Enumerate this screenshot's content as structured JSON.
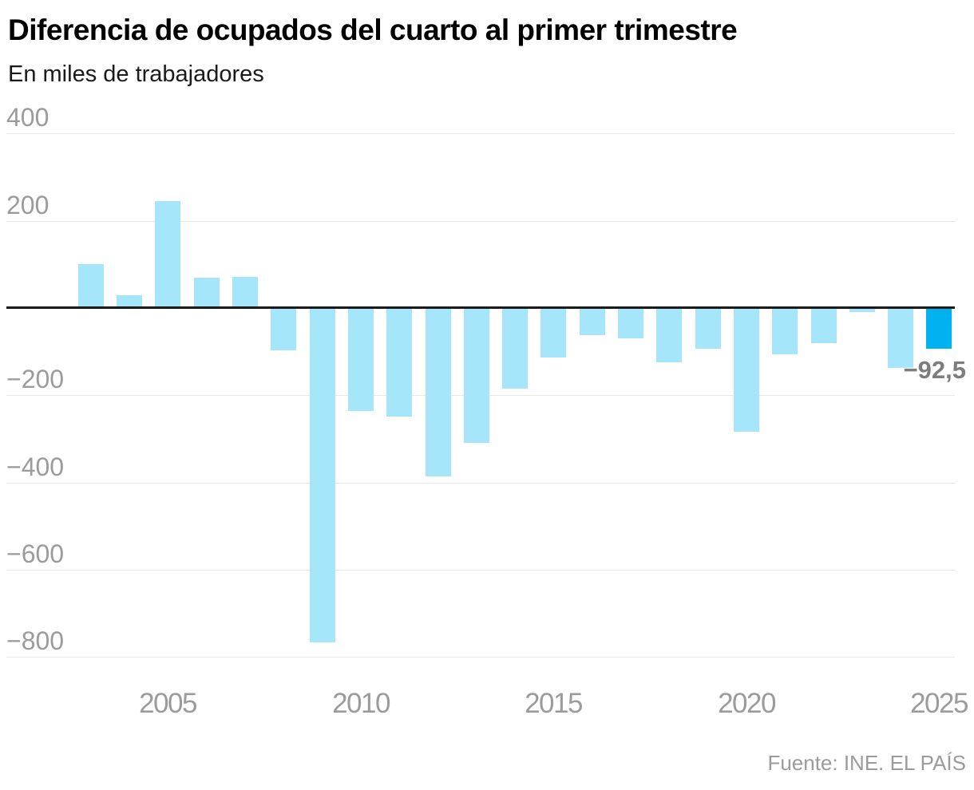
{
  "chart_data": {
    "type": "bar",
    "title": "Diferencia de ocupados del cuarto al primer trimestre",
    "subtitle": "En miles de trabajadores",
    "source": "Fuente: INE. EL PAÍS",
    "categories": [
      "2003",
      "2004",
      "2005",
      "2006",
      "2007",
      "2008",
      "2009",
      "2010",
      "2011",
      "2012",
      "2013",
      "2014",
      "2015",
      "2016",
      "2017",
      "2018",
      "2019",
      "2020",
      "2021",
      "2022",
      "2023",
      "2024",
      "2025"
    ],
    "values": [
      100,
      29,
      245,
      70,
      71,
      -97,
      -766,
      -236,
      -249,
      -387,
      -309,
      -185,
      -113,
      -63,
      -69,
      -125,
      -93,
      -284,
      -106,
      -80,
      -9,
      -137,
      -92.5
    ],
    "ylim": [
      -800,
      400
    ],
    "yticks": [
      {
        "value": 400,
        "label": "400"
      },
      {
        "value": 200,
        "label": "200"
      },
      {
        "value": -200,
        "label": "−200"
      },
      {
        "value": -400,
        "label": "−400"
      },
      {
        "value": -600,
        "label": "−600"
      },
      {
        "value": -800,
        "label": "−800"
      }
    ],
    "xticks": [
      "2005",
      "2010",
      "2015",
      "2020",
      "2025"
    ],
    "grid": "horizontal",
    "legend": "none",
    "bar_color": "#a5e6fb",
    "highlight_color": "#00b2ef",
    "highlight_index": 22,
    "annotation": {
      "text": "−92,5",
      "target": "2025"
    }
  }
}
